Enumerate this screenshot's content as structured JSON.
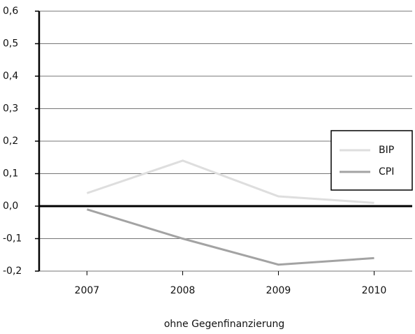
{
  "chart_data": {
    "type": "line",
    "categories": [
      "2007",
      "2008",
      "2009",
      "2010"
    ],
    "series": [
      {
        "name": "BIP",
        "color": "#dedede",
        "values": [
          0.04,
          0.14,
          0.03,
          0.01
        ]
      },
      {
        "name": "CPI",
        "color": "#a3a3a3",
        "values": [
          -0.01,
          -0.1,
          -0.18,
          -0.16
        ]
      }
    ],
    "xlabel": "ohne Gegenfinanzierung",
    "ylim": [
      -0.2,
      0.6
    ],
    "yticks": [
      {
        "value": -0.2,
        "label": "-0,2"
      },
      {
        "value": -0.1,
        "label": "-0,1"
      },
      {
        "value": 0,
        "label": "0,0"
      },
      {
        "value": 0.1,
        "label": "0,1"
      },
      {
        "value": 0.2,
        "label": "0,2"
      },
      {
        "value": 0.3,
        "label": "0,3"
      },
      {
        "value": 0.4,
        "label": "0,4"
      },
      {
        "value": 0.5,
        "label": "0,5"
      },
      {
        "value": 0.6,
        "label": "0,6"
      }
    ],
    "grid": true,
    "legend": "right"
  }
}
